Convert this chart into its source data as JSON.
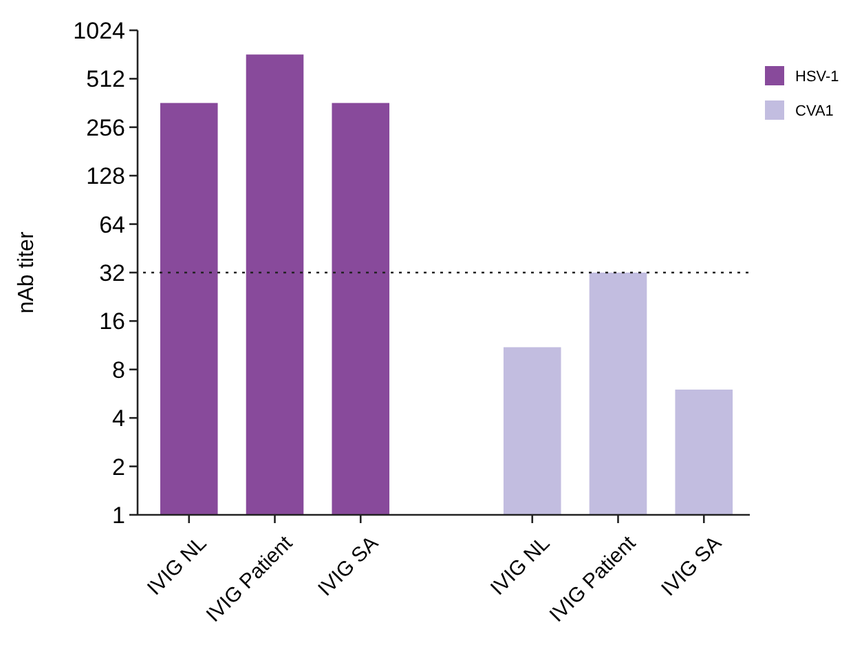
{
  "chart_data": {
    "type": "bar",
    "ylabel": "nAb titer",
    "log": "y",
    "categories": [
      "IVIG NL",
      "IVIG Patient",
      "IVIG SA",
      null,
      "IVIG NL",
      "IVIG Patient",
      "IVIG SA"
    ],
    "series": [
      {
        "name": "HSV-1",
        "color": "#884a9b",
        "values": [
          362,
          724,
          362,
          null,
          null,
          null,
          null
        ]
      },
      {
        "name": "CVA1",
        "color": "#c2bde0",
        "values": [
          null,
          null,
          null,
          null,
          11,
          32,
          6
        ]
      }
    ],
    "ylim": [
      1,
      1024
    ],
    "yticks": [
      1,
      2,
      4,
      8,
      16,
      32,
      64,
      128,
      256,
      512,
      1024
    ],
    "ref_lines": [
      {
        "axis": "y",
        "value": 32,
        "line_style": "dotted"
      }
    ],
    "legend": "top right",
    "grid": false
  }
}
